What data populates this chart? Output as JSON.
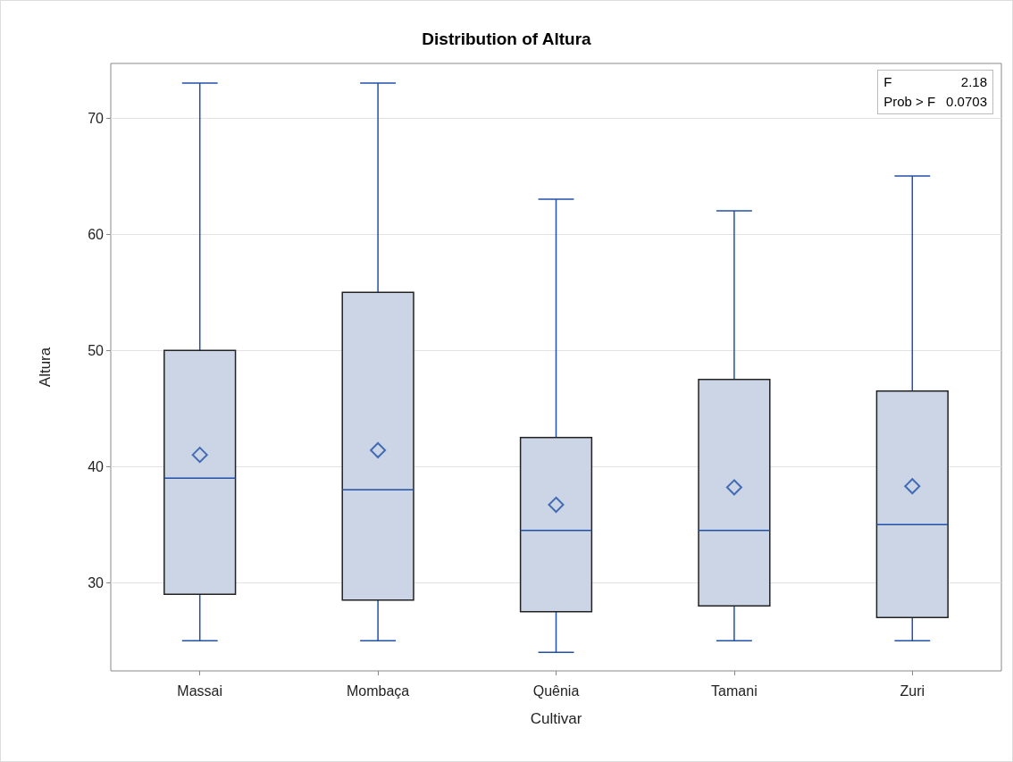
{
  "chart_data": {
    "type": "box",
    "title": "Distribution of Altura",
    "xlabel": "Cultivar",
    "ylabel": "Altura",
    "categories": [
      "Massai",
      "Mombaça",
      "Quênia",
      "Tamani",
      "Zuri"
    ],
    "series": [
      {
        "color": "#cbd5e6",
        "boxes": [
          {
            "low": 25,
            "q1": 29,
            "median": 39,
            "q3": 50,
            "high": 73,
            "mean": 41
          },
          {
            "low": 25,
            "q1": 28.5,
            "median": 38,
            "q3": 55,
            "high": 73,
            "mean": 41.4
          },
          {
            "low": 24,
            "q1": 27.5,
            "median": 34.5,
            "q3": 42.5,
            "high": 63,
            "mean": 36.7
          },
          {
            "low": 25,
            "q1": 28,
            "median": 34.5,
            "q3": 47.5,
            "high": 62,
            "mean": 38.2
          },
          {
            "low": 25,
            "q1": 27,
            "median": 35,
            "q3": 46.5,
            "high": 65,
            "mean": 38.3
          }
        ]
      }
    ],
    "ylim": [
      22.4,
      74.7
    ],
    "yticks": [
      30,
      40,
      50,
      60,
      70
    ],
    "grid": "y",
    "marker": "diamond",
    "annotations": [
      "F 2.18",
      "Prob > F 0.0703"
    ]
  }
}
